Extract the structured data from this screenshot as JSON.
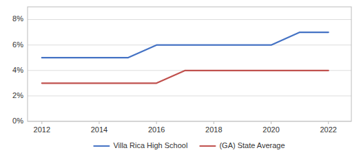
{
  "chart_data": {
    "type": "line",
    "x": [
      2012,
      2013,
      2014,
      2015,
      2016,
      2017,
      2018,
      2019,
      2020,
      2021,
      2022
    ],
    "series": [
      {
        "name": "Villa Rica High School",
        "color": "#4472C4",
        "values": [
          0.05,
          0.05,
          0.05,
          0.05,
          0.06,
          0.06,
          0.06,
          0.06,
          0.06,
          0.07,
          0.07
        ]
      },
      {
        "name": "(GA) State Average",
        "color": "#C0504D",
        "values": [
          0.03,
          0.03,
          0.03,
          0.03,
          0.03,
          0.04,
          0.04,
          0.04,
          0.04,
          0.04,
          0.04
        ]
      }
    ],
    "xlim": [
      2011.5,
      2022.8
    ],
    "xticks": [
      2012,
      2014,
      2016,
      2018,
      2020,
      2022
    ],
    "ylim": [
      0,
      0.09
    ],
    "yticks": [
      {
        "value": 0,
        "label": "0%"
      },
      {
        "value": 0.02,
        "label": "2%"
      },
      {
        "value": 0.04,
        "label": "4%"
      },
      {
        "value": 0.06,
        "label": "6%"
      },
      {
        "value": 0.08,
        "label": "8%"
      }
    ],
    "grid": true,
    "legend": "bottom"
  }
}
